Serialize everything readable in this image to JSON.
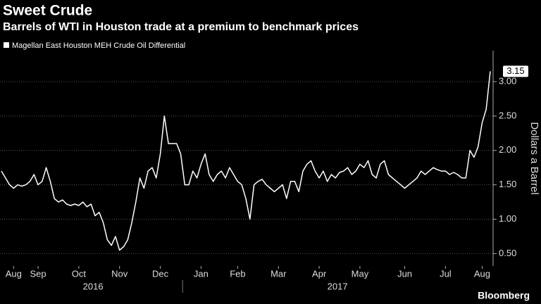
{
  "chart_data": {
    "type": "line",
    "title": "Sweet Crude",
    "subtitle": "Barrels of WTI in Houston trade at a premium to benchmark prices",
    "y_axis_label": "Dollars a Barrel",
    "source": "Bloomberg",
    "categories": [
      null,
      null,
      null,
      "Aug",
      null,
      null,
      null,
      null,
      null,
      "Sep",
      null,
      null,
      null,
      null,
      null,
      null,
      null,
      null,
      null,
      "Oct",
      null,
      null,
      null,
      null,
      null,
      null,
      null,
      null,
      null,
      "Nov",
      null,
      null,
      null,
      null,
      null,
      null,
      null,
      null,
      null,
      "Dec",
      null,
      null,
      null,
      null,
      null,
      null,
      null,
      null,
      null,
      "Jan",
      null,
      null,
      null,
      null,
      null,
      null,
      null,
      null,
      "Feb",
      null,
      null,
      null,
      null,
      null,
      null,
      null,
      null,
      null,
      "Mar",
      null,
      null,
      null,
      null,
      null,
      null,
      null,
      null,
      null,
      "Apr",
      null,
      null,
      null,
      null,
      null,
      null,
      null,
      null,
      null,
      "May",
      null,
      null,
      null,
      null,
      null,
      null,
      null,
      null,
      null,
      null,
      "Jun",
      null,
      null,
      null,
      null,
      null,
      null,
      null,
      null,
      null,
      "Jul",
      null,
      null,
      null,
      null,
      null,
      null,
      null,
      null,
      "Aug",
      null,
      null
    ],
    "years": [
      {
        "label": "2016",
        "start": 0
      },
      {
        "label": "2017",
        "start": 45
      }
    ],
    "series": [
      {
        "name": "Magellan East Houston MEH Crude Oil Differential",
        "color": "#ffffff",
        "values": [
          1.7,
          1.6,
          1.5,
          1.45,
          1.5,
          1.48,
          1.5,
          1.55,
          1.65,
          1.5,
          1.55,
          1.75,
          1.55,
          1.3,
          1.25,
          1.28,
          1.22,
          1.2,
          1.22,
          1.2,
          1.25,
          1.18,
          1.22,
          1.05,
          1.1,
          0.95,
          0.7,
          0.62,
          0.75,
          0.55,
          0.6,
          0.7,
          0.95,
          1.25,
          1.6,
          1.45,
          1.7,
          1.75,
          1.6,
          1.95,
          2.5,
          2.1,
          2.1,
          2.1,
          1.95,
          1.5,
          1.5,
          1.7,
          1.6,
          1.8,
          1.95,
          1.65,
          1.55,
          1.65,
          1.7,
          1.6,
          1.75,
          1.65,
          1.55,
          1.5,
          1.3,
          1.0,
          1.5,
          1.55,
          1.58,
          1.5,
          1.45,
          1.4,
          1.45,
          1.5,
          1.3,
          1.55,
          1.55,
          1.4,
          1.7,
          1.8,
          1.85,
          1.7,
          1.6,
          1.7,
          1.55,
          1.65,
          1.6,
          1.68,
          1.7,
          1.75,
          1.65,
          1.7,
          1.8,
          1.75,
          1.85,
          1.65,
          1.6,
          1.8,
          1.85,
          1.65,
          1.6,
          1.55,
          1.5,
          1.45,
          1.5,
          1.55,
          1.6,
          1.7,
          1.65,
          1.7,
          1.75,
          1.72,
          1.7,
          1.7,
          1.65,
          1.68,
          1.65,
          1.6,
          1.6,
          2.0,
          1.9,
          2.05,
          2.4,
          2.6,
          3.15
        ]
      }
    ],
    "ylim": [
      0.32,
      3.45
    ],
    "yticks": [
      {
        "value": 0.5,
        "label": "0.50"
      },
      {
        "value": 1.0,
        "label": "1.00"
      },
      {
        "value": 1.5,
        "label": "1.50"
      },
      {
        "value": 2.0,
        "label": "2.00"
      },
      {
        "value": 2.5,
        "label": "2.50"
      },
      {
        "value": 3.0,
        "label": "3.00"
      }
    ],
    "grid": true
  }
}
